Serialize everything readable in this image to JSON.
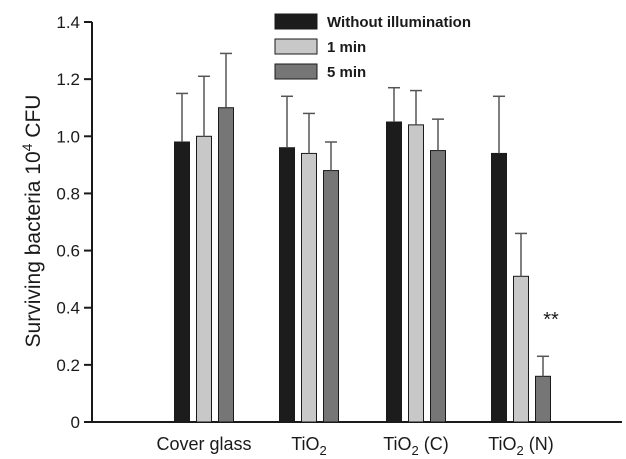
{
  "chart_data": {
    "type": "bar",
    "categories": [
      {
        "main": "Cover glass",
        "sub": "",
        "suffix": ""
      },
      {
        "main": "TiO",
        "sub": "2",
        "suffix": ""
      },
      {
        "main": "TiO",
        "sub": "2",
        "suffix": " (C)"
      },
      {
        "main": "TiO",
        "sub": "2",
        "suffix": " (N)"
      }
    ],
    "series": [
      {
        "name": "Without illumination",
        "color": "#1c1c1c",
        "values": [
          0.98,
          0.96,
          1.05,
          0.94
        ],
        "errors": [
          0.17,
          0.18,
          0.12,
          0.2
        ]
      },
      {
        "name": "1 min",
        "color": "#c8c8c8",
        "values": [
          1.0,
          0.94,
          1.04,
          0.51
        ],
        "errors": [
          0.21,
          0.14,
          0.12,
          0.15
        ]
      },
      {
        "name": "5 min",
        "color": "#767676",
        "values": [
          1.1,
          0.88,
          0.95,
          0.16
        ],
        "errors": [
          0.19,
          0.1,
          0.11,
          0.07
        ]
      }
    ],
    "ylabel": {
      "main": "Surviving bacteria  10",
      "sup": "4",
      "suffix": " CFU"
    },
    "ylim": [
      0,
      1.4
    ],
    "yticks": [
      "0",
      "0.2",
      "0.4",
      "0.6",
      "0.8",
      "1.0",
      "1.2",
      "1.4"
    ],
    "annotations": [
      {
        "text": "**",
        "category_index": 3
      }
    ],
    "legend_position": "top-center",
    "grid": false
  }
}
